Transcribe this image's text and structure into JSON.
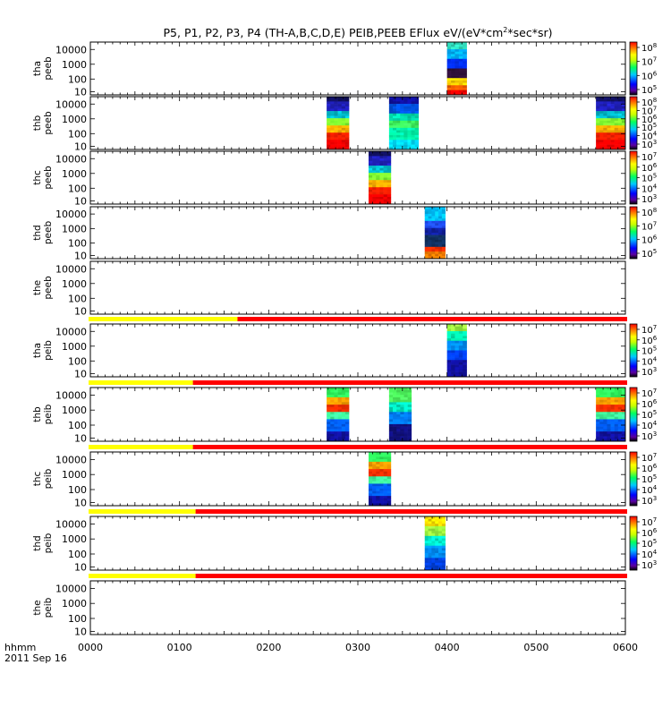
{
  "chart_data": {
    "type": "heatmap",
    "title_main": "P5, P1, P2, P3, P4 (TH-A,B,C,D,E) PEIB,PEEB EFlux eV/(eV*cm",
    "title_sup": "2",
    "title_end": "*sec*sr)",
    "xlabel": "hhmm",
    "date_label": "2011 Sep 16",
    "x_ticks": [
      "0000",
      "0100",
      "0200",
      "0300",
      "0400",
      "0500",
      "0600"
    ],
    "xlim_hours": [
      0,
      6
    ],
    "y_ticks": [
      "10000",
      "1000",
      "100",
      "10"
    ],
    "panels": [
      {
        "name": "tha peeb",
        "label1": "tha",
        "label2": "peeb",
        "bursts": [
          {
            "start": 4.0,
            "end": 4.22,
            "kind": "hot_low_mid"
          }
        ],
        "colorbar": [
          {
            "t": "10",
            "s": "8"
          },
          {
            "t": "10",
            "s": "7"
          },
          {
            "t": "10",
            "s": "6"
          },
          {
            "t": "10",
            "s": "5"
          }
        ],
        "status_bar": null
      },
      {
        "name": "thb peeb",
        "label1": "thb",
        "label2": "peeb",
        "bursts": [
          {
            "start": 2.65,
            "end": 2.9,
            "kind": "hot_low"
          },
          {
            "start": 3.35,
            "end": 3.68,
            "kind": "green_mid"
          },
          {
            "start": 5.67,
            "end": 6.0,
            "kind": "hot_low"
          }
        ],
        "colorbar": [
          {
            "t": "10",
            "s": "8"
          },
          {
            "t": "10",
            "s": "7"
          },
          {
            "t": "10",
            "s": "6"
          },
          {
            "t": "10",
            "s": "5"
          },
          {
            "t": "10",
            "s": "4"
          },
          {
            "t": "10",
            "s": "3"
          }
        ],
        "status_bar": null
      },
      {
        "name": "thc peeb",
        "label1": "thc",
        "label2": "peeb",
        "bursts": [
          {
            "start": 3.12,
            "end": 3.37,
            "kind": "hot_low"
          }
        ],
        "colorbar": [
          {
            "t": "10",
            "s": "7"
          },
          {
            "t": "10",
            "s": "6"
          },
          {
            "t": "10",
            "s": "5"
          },
          {
            "t": "10",
            "s": "4"
          },
          {
            "t": "10",
            "s": "3"
          }
        ],
        "status_bar": null
      },
      {
        "name": "thd peeb",
        "label1": "thd",
        "label2": "peeb",
        "bursts": [
          {
            "start": 3.75,
            "end": 3.98,
            "kind": "cyan_top_dark_mid"
          }
        ],
        "colorbar": [
          {
            "t": "10",
            "s": "8"
          },
          {
            "t": "10",
            "s": "7"
          },
          {
            "t": "10",
            "s": "6"
          },
          {
            "t": "10",
            "s": "5"
          }
        ],
        "status_bar": null
      },
      {
        "name": "the peeb",
        "label1": "the",
        "label2": "peeb",
        "bursts": [],
        "colorbar": [],
        "status_bar": null
      },
      {
        "name": "tha peib",
        "label1": "tha",
        "label2": "peib",
        "bursts": [
          {
            "start": 4.0,
            "end": 4.22,
            "kind": "ion_mid"
          }
        ],
        "colorbar": [
          {
            "t": "10",
            "s": "7"
          },
          {
            "t": "10",
            "s": "6"
          },
          {
            "t": "10",
            "s": "5"
          },
          {
            "t": "10",
            "s": "4"
          },
          {
            "t": "10",
            "s": "3"
          }
        ],
        "status_bar": {
          "yellow_end": 1.65
        }
      },
      {
        "name": "thb peib",
        "label1": "thb",
        "label2": "peib",
        "bursts": [
          {
            "start": 2.65,
            "end": 2.9,
            "kind": "ion_hot"
          },
          {
            "start": 3.35,
            "end": 3.6,
            "kind": "ion_green"
          },
          {
            "start": 5.67,
            "end": 6.0,
            "kind": "ion_hot"
          }
        ],
        "colorbar": [
          {
            "t": "10",
            "s": "7"
          },
          {
            "t": "10",
            "s": "6"
          },
          {
            "t": "10",
            "s": "5"
          },
          {
            "t": "10",
            "s": "4"
          },
          {
            "t": "10",
            "s": "3"
          }
        ],
        "status_bar": {
          "yellow_end": 1.15
        }
      },
      {
        "name": "thc peib",
        "label1": "thc",
        "label2": "peib",
        "bursts": [
          {
            "start": 3.12,
            "end": 3.37,
            "kind": "ion_hot"
          }
        ],
        "colorbar": [
          {
            "t": "10",
            "s": "7"
          },
          {
            "t": "10",
            "s": "6"
          },
          {
            "t": "10",
            "s": "5"
          },
          {
            "t": "10",
            "s": "4"
          },
          {
            "t": "10",
            "s": "3"
          }
        ],
        "status_bar": {
          "yellow_end": 1.15
        }
      },
      {
        "name": "thd peib",
        "label1": "thd",
        "label2": "peib",
        "bursts": [
          {
            "start": 3.75,
            "end": 3.98,
            "kind": "ion_yellow_top"
          }
        ],
        "colorbar": [
          {
            "t": "10",
            "s": "7"
          },
          {
            "t": "10",
            "s": "6"
          },
          {
            "t": "10",
            "s": "5"
          },
          {
            "t": "10",
            "s": "4"
          },
          {
            "t": "10",
            "s": "3"
          }
        ],
        "status_bar": {
          "yellow_end": 1.18
        }
      },
      {
        "name": "the peib",
        "label1": "the",
        "label2": "peib",
        "bursts": [],
        "colorbar": [],
        "status_bar": {
          "yellow_end": 1.18
        }
      }
    ],
    "colors": {
      "status_yellow": "#ffff00",
      "status_red": "#ff0000"
    }
  }
}
